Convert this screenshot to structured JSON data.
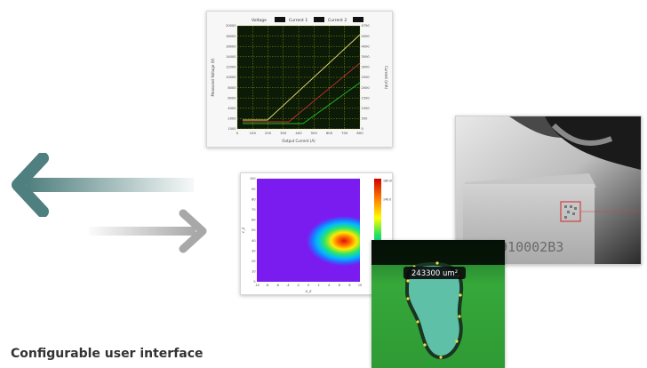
{
  "caption": "Configurable user interface",
  "colors": {
    "arrow_teal": "#4f7f7e",
    "arrow_grey": "#a8a8a8",
    "plot_bg": "#0c1a08",
    "grid": "#c8d000",
    "line_yellow": "#e8e070",
    "line_red": "#c83030",
    "line_green": "#20c020",
    "heat_bg": "#7a1cf0",
    "photo_bg": "#d8d8d8",
    "green_bg": "#3aaa3a"
  },
  "chart": {
    "legend": [
      "Voltage",
      "Current 1",
      "Current 2"
    ],
    "y_left_label": "Measured Voltage (V)",
    "y_right_label": "Current (mA)",
    "x_label": "Output Current (A)",
    "x_ticks": [
      "0",
      "100",
      "200",
      "300",
      "400",
      "500",
      "600",
      "700",
      "800"
    ],
    "y_left_ticks": [
      "20000",
      "18000",
      "16000",
      "14000",
      "12000",
      "10000",
      "8000",
      "6000",
      "4000",
      "2000",
      "1000"
    ],
    "y_right_ticks": [
      "4750",
      "4500",
      "4000",
      "3500",
      "3000",
      "2500",
      "2000",
      "1500",
      "1000",
      "500",
      "0"
    ]
  },
  "heatmap": {
    "x_label": "X_Z",
    "y_label": "Y_Z",
    "x_ticks": [
      "-10",
      "-8",
      "-6",
      "-4",
      "-2",
      "0",
      "2",
      "4",
      "6",
      "8",
      "10"
    ],
    "y_ticks": [
      "100",
      "90",
      "80",
      "70",
      "60",
      "50",
      "40",
      "30",
      "20",
      "10",
      "0"
    ],
    "colorbar_ticks": [
      "180.00",
      "140.0",
      "100.00",
      "0.00"
    ]
  },
  "photo": {
    "serial": "0910002B3"
  },
  "particle": {
    "area_label": "243300 um²"
  }
}
